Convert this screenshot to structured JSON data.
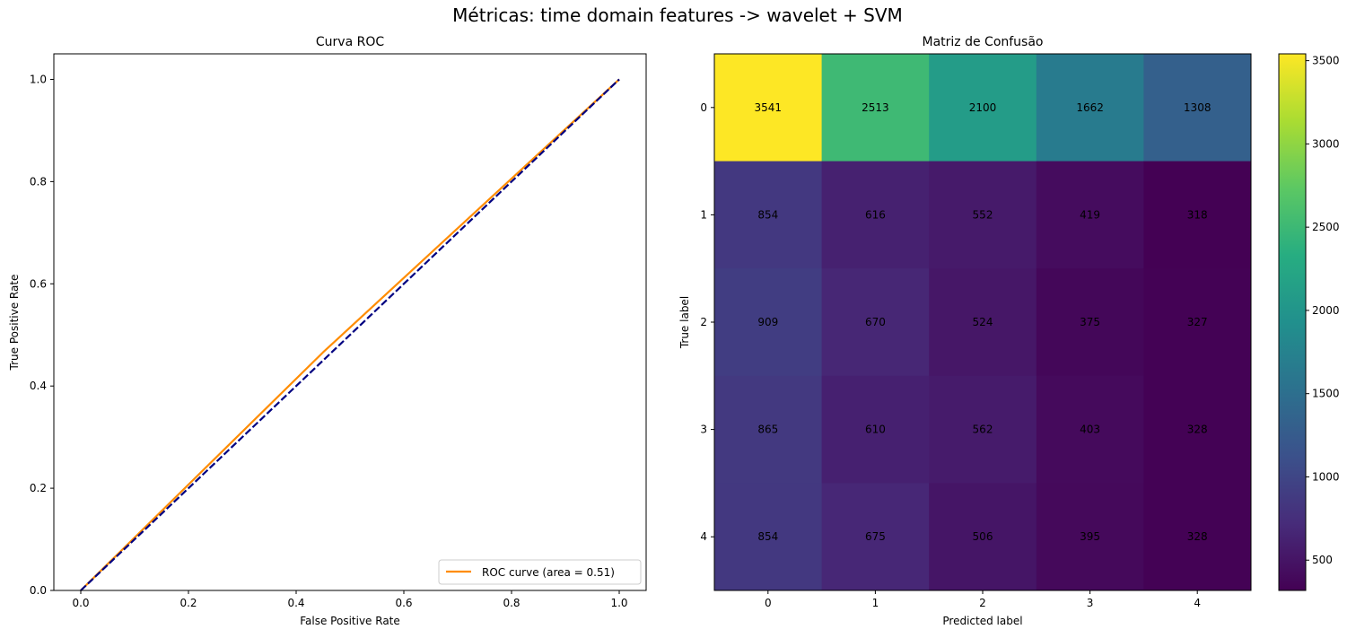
{
  "figure": {
    "suptitle": "Métricas: time domain features -> wavelet + SVM"
  },
  "chart_data": [
    {
      "type": "line",
      "title": "Curva ROC",
      "xlabel": "False Positive Rate",
      "ylabel": "True Positive Rate",
      "xlim": [
        -0.05,
        1.05
      ],
      "ylim": [
        0.0,
        1.05
      ],
      "xticks": [
        "0.0",
        "0.2",
        "0.4",
        "0.6",
        "0.8",
        "1.0"
      ],
      "yticks": [
        "0.0",
        "0.2",
        "0.4",
        "0.6",
        "0.8",
        "1.0"
      ],
      "legend_position": "lower right",
      "series": [
        {
          "name": "ROC curve (area = 0.51)",
          "color": "#ff8c00",
          "style": "solid",
          "x": [
            0.0,
            0.45,
            1.0
          ],
          "y": [
            0.0,
            0.466,
            1.0
          ]
        },
        {
          "color": "#000080",
          "style": "dashed",
          "x": [
            0.0,
            1.0
          ],
          "y": [
            0.0,
            1.0
          ]
        }
      ]
    },
    {
      "type": "heatmap",
      "title": "Matriz de Confusão",
      "xlabel": "Predicted label",
      "ylabel": "True label",
      "x_categories": [
        "0",
        "1",
        "2",
        "3",
        "4"
      ],
      "y_categories": [
        "0",
        "1",
        "2",
        "3",
        "4"
      ],
      "colormap": "viridis",
      "colorbar_ticks": [
        "500",
        "1000",
        "1500",
        "2000",
        "2500",
        "3000",
        "3500"
      ],
      "values": [
        [
          3541,
          2513,
          2100,
          1662,
          1308
        ],
        [
          854,
          616,
          552,
          419,
          318
        ],
        [
          909,
          670,
          524,
          375,
          327
        ],
        [
          865,
          610,
          562,
          403,
          328
        ],
        [
          854,
          675,
          506,
          395,
          328
        ]
      ]
    }
  ]
}
